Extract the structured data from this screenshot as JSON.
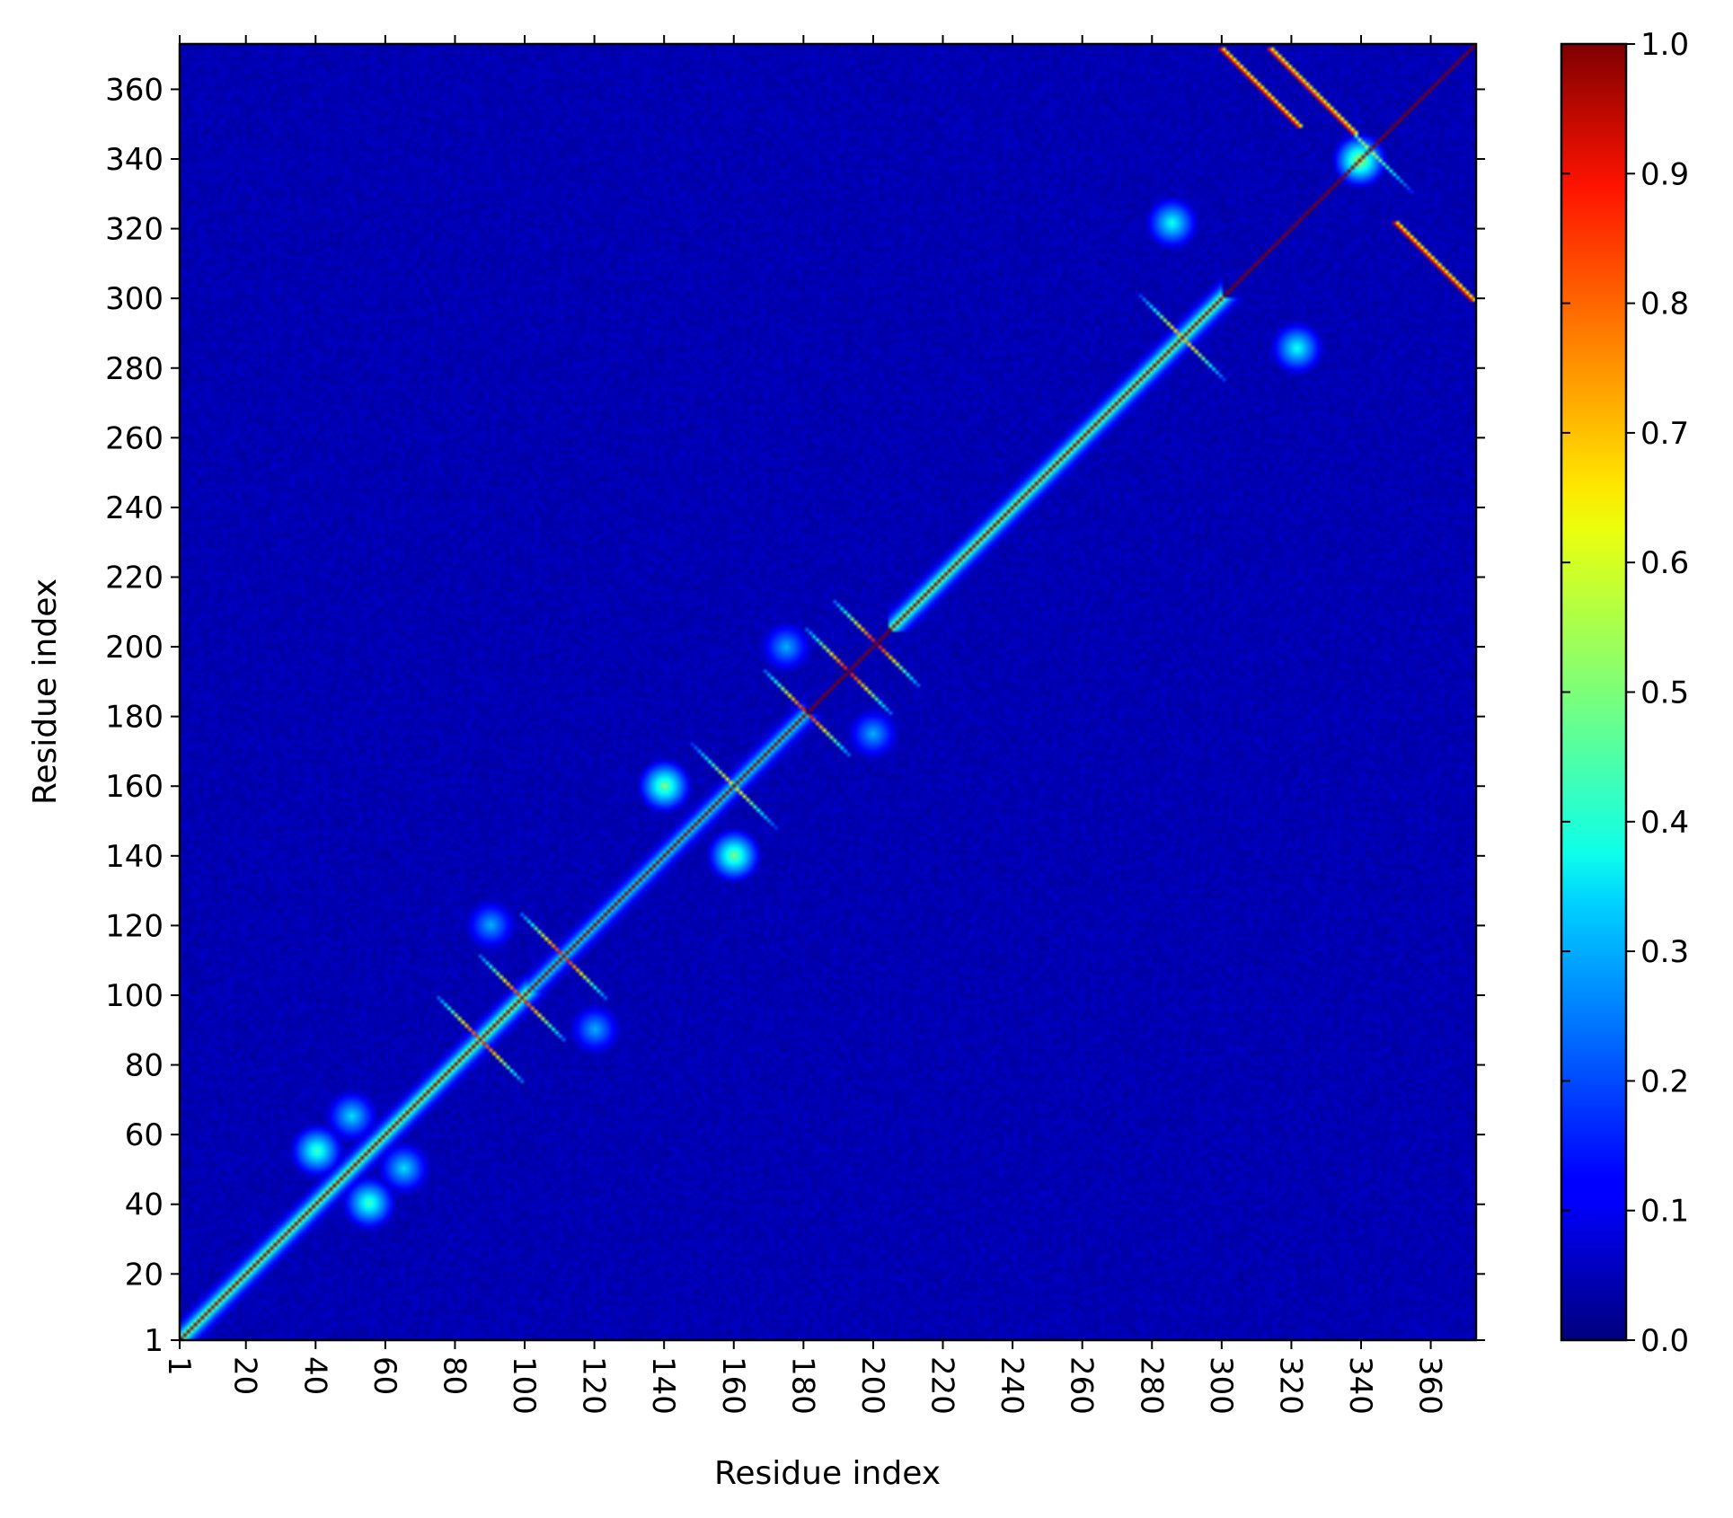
{
  "chart_data": {
    "type": "heatmap",
    "title": "",
    "xlabel": "Residue index",
    "ylabel": "Residue index",
    "xlim": [
      1,
      373
    ],
    "ylim": [
      1,
      373
    ],
    "x_ticks": [
      1,
      20,
      40,
      60,
      80,
      100,
      120,
      140,
      160,
      180,
      200,
      220,
      240,
      260,
      280,
      300,
      320,
      340,
      360
    ],
    "y_ticks": [
      1,
      20,
      40,
      60,
      80,
      100,
      120,
      140,
      160,
      180,
      200,
      220,
      240,
      260,
      280,
      300,
      320,
      340,
      360
    ],
    "x_tick_rotation_deg": 90,
    "colormap": "jet",
    "colorbar": {
      "min": 0.0,
      "max": 1.0,
      "ticks": [
        "0.0",
        "0.1",
        "0.2",
        "0.3",
        "0.4",
        "0.5",
        "0.6",
        "0.7",
        "0.8",
        "0.9",
        "1.0"
      ]
    },
    "matrix_symmetric": true,
    "diagonal_value": 1.0,
    "background_value": 0.03,
    "features": [
      {
        "kind": "diagonal_band",
        "from": 1,
        "to": 100,
        "value": 0.6
      },
      {
        "kind": "diagonal_band",
        "from": 100,
        "to": 180,
        "value": 0.45
      },
      {
        "kind": "diagonal_band",
        "from": 205,
        "to": 300,
        "value": 0.6
      },
      {
        "kind": "hairpin",
        "center": 87,
        "value": 0.9
      },
      {
        "kind": "hairpin",
        "center": 99,
        "value": 0.9
      },
      {
        "kind": "hairpin",
        "center": 111,
        "value": 0.9
      },
      {
        "kind": "hairpin",
        "center": 160,
        "value": 0.7
      },
      {
        "kind": "hairpin",
        "center": 181,
        "value": 0.9
      },
      {
        "kind": "hairpin",
        "center": 193,
        "value": 0.9
      },
      {
        "kind": "hairpin",
        "center": 201,
        "value": 0.9
      },
      {
        "kind": "hairpin",
        "center": 289,
        "value": 0.75
      },
      {
        "kind": "hairpin",
        "center": 343,
        "value": 0.6
      },
      {
        "kind": "antiparallel_pair",
        "i_from": 300,
        "i_to": 322,
        "j_from": 372,
        "j_to": 350,
        "value": 0.9
      },
      {
        "kind": "antiparallel_pair",
        "i_from": 350,
        "i_to": 372,
        "j_from": 322,
        "j_to": 300,
        "value": 0.9
      },
      {
        "kind": "antiparallel_pair",
        "i_from": 314,
        "i_to": 338,
        "j_from": 372,
        "j_to": 355,
        "value": 0.85
      },
      {
        "kind": "blob",
        "i": 322,
        "j": 286,
        "value": 0.4
      },
      {
        "kind": "blob",
        "i": 40,
        "j": 55,
        "value": 0.45
      },
      {
        "kind": "blob",
        "i": 50,
        "j": 65,
        "value": 0.35
      },
      {
        "kind": "blob",
        "i": 160,
        "j": 140,
        "value": 0.5
      },
      {
        "kind": "blob",
        "i": 175,
        "j": 200,
        "value": 0.3
      },
      {
        "kind": "blob",
        "i": 120,
        "j": 90,
        "value": 0.3
      },
      {
        "kind": "blob",
        "i": 340,
        "j": 340,
        "value": 0.55
      }
    ]
  }
}
